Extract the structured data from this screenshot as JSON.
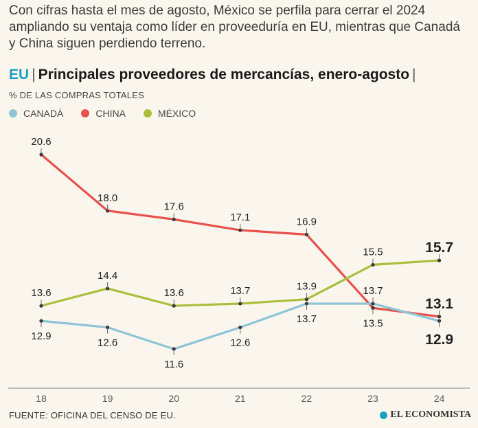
{
  "intro": "Con cifras hasta el mes de agosto, México se perfila para cerrar el 2024 ampliando su ventaja como líder en proveeduría en EU, mientras que Canadá y China siguen perdiendo terreno.",
  "headline": {
    "region": "EU",
    "separator": "|",
    "title": "Principales proveedores de mercancías, enero-agosto",
    "trailing": "|"
  },
  "unit_label": "% DE LAS COMPRAS TOTALES",
  "legend": [
    {
      "label": "CANADÁ",
      "color": "#8fc4d6"
    },
    {
      "label": "CHINA",
      "color": "#e8504c"
    },
    {
      "label": "MÉXICO",
      "color": "#a9bf3a"
    }
  ],
  "source": "FUENTE: OFICINA DEL CENSO DE EU.",
  "brand": "EL ECONOMISTA",
  "brand_icon": "globe-icon",
  "chart_data": {
    "type": "line",
    "title": "Principales proveedores de mercancías, enero-agosto",
    "xlabel": "",
    "ylabel": "% de las compras totales",
    "categories": [
      "18",
      "19",
      "20",
      "21",
      "22",
      "23",
      "24"
    ],
    "ylim": [
      10,
      22
    ],
    "grid": false,
    "series": [
      {
        "name": "CHINA",
        "color": "#e8504c",
        "values": [
          20.6,
          18.0,
          17.6,
          17.1,
          16.9,
          13.5,
          13.1
        ],
        "labels": [
          "20.6",
          "18.0",
          "17.6",
          "17.1",
          "16.9",
          "13.5",
          "13.1"
        ]
      },
      {
        "name": "MÉXICO",
        "color": "#a9bf3a",
        "values": [
          13.6,
          14.4,
          13.6,
          13.7,
          13.9,
          15.5,
          15.7
        ],
        "labels": [
          "13.6",
          "14.4",
          "13.6",
          "13.7",
          "13.9",
          "15.5",
          "15.7"
        ]
      },
      {
        "name": "CANADÁ",
        "color": "#8fc4d6",
        "values": [
          12.9,
          12.6,
          11.6,
          12.6,
          13.7,
          13.7,
          12.9
        ],
        "labels": [
          "12.9",
          "12.6",
          "11.6",
          "12.6",
          "13.7",
          "13.7",
          "12.9"
        ]
      }
    ]
  }
}
